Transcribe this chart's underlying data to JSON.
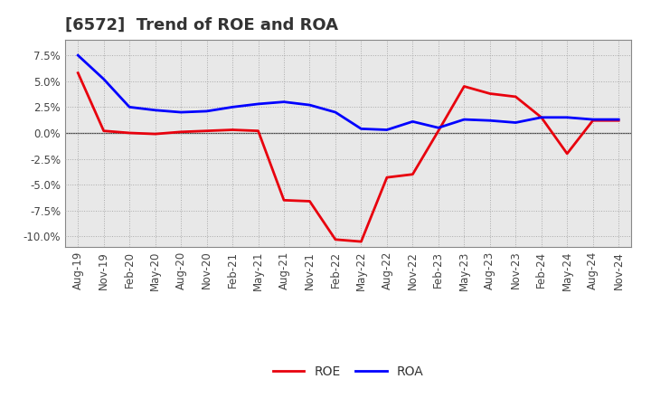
{
  "title": "[6572]  Trend of ROE and ROA",
  "x_labels": [
    "Aug-19",
    "Nov-19",
    "Feb-20",
    "May-20",
    "Aug-20",
    "Nov-20",
    "Feb-21",
    "May-21",
    "Aug-21",
    "Nov-21",
    "Feb-22",
    "May-22",
    "Aug-22",
    "Nov-22",
    "Feb-23",
    "May-23",
    "Aug-23",
    "Nov-23",
    "Feb-24",
    "May-24",
    "Aug-24",
    "Nov-24"
  ],
  "roe": [
    5.8,
    0.2,
    0.0,
    -0.1,
    0.1,
    0.2,
    0.3,
    0.2,
    -6.5,
    -6.6,
    -10.3,
    -10.5,
    -4.3,
    -4.0,
    0.2,
    4.5,
    3.8,
    3.5,
    1.5,
    -2.0,
    1.2,
    1.2
  ],
  "roa": [
    7.5,
    5.2,
    2.5,
    2.2,
    2.0,
    2.1,
    2.5,
    2.8,
    3.0,
    2.7,
    2.0,
    0.4,
    0.3,
    1.1,
    0.5,
    1.3,
    1.2,
    1.0,
    1.5,
    1.5,
    1.3,
    1.3
  ],
  "roe_color": "#e8000d",
  "roa_color": "#0000ff",
  "ylim": [
    -11.0,
    9.0
  ],
  "yticks": [
    -10.0,
    -7.5,
    -5.0,
    -2.5,
    0.0,
    2.5,
    5.0,
    7.5
  ],
  "background_color": "#ffffff",
  "plot_bg_color": "#e8e8e8",
  "grid_color": "#aaaaaa",
  "linewidth": 2.0,
  "title_fontsize": 13,
  "tick_fontsize": 8.5,
  "legend_fontsize": 10
}
